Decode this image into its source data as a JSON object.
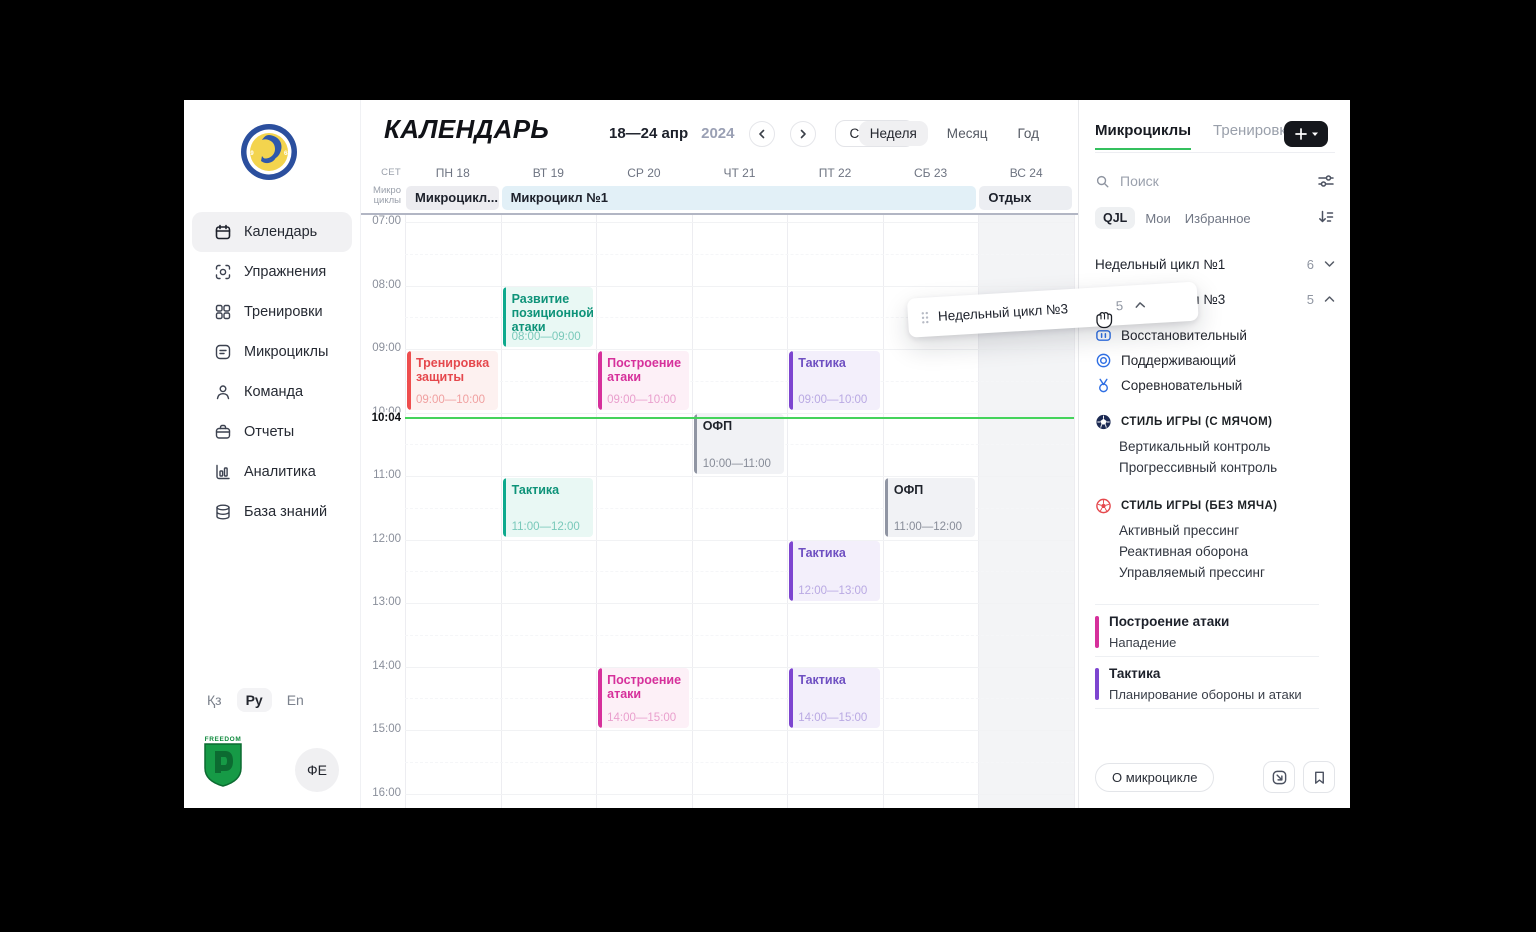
{
  "header": {
    "title": "КАЛЕНДАРЬ",
    "date_range": "18—24 апр",
    "year": "2024",
    "prev": "‹",
    "next": "›",
    "today": "Сегодня",
    "views": [
      {
        "label": "Неделя",
        "active": true
      },
      {
        "label": "Месяц",
        "active": false
      },
      {
        "label": "Год",
        "active": false
      }
    ]
  },
  "sidebar": {
    "club": "FC QYZYLJAR PETROPAVL 1968",
    "nav": [
      {
        "icon": "calendar",
        "label": "Календарь",
        "active": true
      },
      {
        "icon": "exercise",
        "label": "Упражнения",
        "active": false
      },
      {
        "icon": "grid",
        "label": "Тренировки",
        "active": false
      },
      {
        "icon": "microcycle",
        "label": "Микроциклы",
        "active": false
      },
      {
        "icon": "person",
        "label": "Команда",
        "active": false
      },
      {
        "icon": "briefcase",
        "label": "Отчеты",
        "active": false
      },
      {
        "icon": "chart",
        "label": "Аналитика",
        "active": false
      },
      {
        "icon": "database",
        "label": "База знаний",
        "active": false
      }
    ],
    "languages": [
      {
        "label": "Қз",
        "active": false
      },
      {
        "label": "Ру",
        "active": true
      },
      {
        "label": "En",
        "active": false
      }
    ],
    "partner": "FREEDOM",
    "avatar": "ФЕ"
  },
  "calendar": {
    "timezone": "CET",
    "row_label": "Микро циклы",
    "days": [
      "ПН 18",
      "ВТ 19",
      "СР 20",
      "ЧТ 21",
      "ПТ 22",
      "СБ 23",
      "ВС 24"
    ],
    "microcycles": [
      {
        "label": "Микроцикл...",
        "col": 0,
        "span": 1,
        "type": "gray"
      },
      {
        "label": "Микроцикл №1",
        "col": 1,
        "span": 5,
        "type": "blue"
      },
      {
        "label": "Отдых",
        "col": 6,
        "span": 1,
        "type": "rest"
      }
    ],
    "hours": [
      "07:00",
      "08:00",
      "09:00",
      "10:00",
      "11:00",
      "12:00",
      "13:00",
      "14:00",
      "15:00",
      "16:00"
    ],
    "now": {
      "label": "10:04",
      "hour": 10,
      "minute": 4
    },
    "events": [
      {
        "title": "Тренировка защиты",
        "time": "09:00—10:00",
        "day": 0,
        "start": 9,
        "end": 10,
        "color": "red"
      },
      {
        "title": "Развитие позиционной атаки",
        "time": "08:00—09:00",
        "day": 1,
        "start": 8,
        "end": 9,
        "color": "teal"
      },
      {
        "title": "Тактика",
        "time": "11:00—12:00",
        "day": 1,
        "start": 11,
        "end": 12,
        "color": "teal"
      },
      {
        "title": "Построение атаки",
        "time": "09:00—10:00",
        "day": 2,
        "start": 9,
        "end": 10,
        "color": "pink"
      },
      {
        "title": "Построение атаки",
        "time": "14:00—15:00",
        "day": 2,
        "start": 14,
        "end": 15,
        "color": "pink"
      },
      {
        "title": "ОФП",
        "time": "10:00—11:00",
        "day": 3,
        "start": 10,
        "end": 11,
        "color": "gray"
      },
      {
        "title": "Тактика",
        "time": "09:00—10:00",
        "day": 4,
        "start": 9,
        "end": 10,
        "color": "purple"
      },
      {
        "title": "Тактика",
        "time": "12:00—13:00",
        "day": 4,
        "start": 12,
        "end": 13,
        "color": "purple"
      },
      {
        "title": "Тактика",
        "time": "14:00—15:00",
        "day": 4,
        "start": 14,
        "end": 15,
        "color": "purple"
      },
      {
        "title": "ОФП",
        "time": "11:00—12:00",
        "day": 5,
        "start": 11,
        "end": 12,
        "color": "gray"
      }
    ],
    "palette": {
      "red": {
        "bar": "#ee4e4e",
        "txt": "#e5484d",
        "bg": "#fdf1f0",
        "tm": "#f0a0a0"
      },
      "teal": {
        "bar": "#0da98d",
        "txt": "#0e9379",
        "bg": "#e9f8f4",
        "tm": "#79c9ba"
      },
      "pink": {
        "bar": "#d6309b",
        "txt": "#d6309b",
        "bg": "#fdf0f7",
        "tm": "#e99fcd"
      },
      "purple": {
        "bar": "#7d45d0",
        "txt": "#6f50c2",
        "bg": "#f3effb",
        "tm": "#b9a9e3"
      },
      "gray": {
        "bar": "#9095a3",
        "txt": "#1f232b",
        "bg": "#f1f2f5",
        "tm": "#878c98"
      }
    },
    "now_line_color": "#44d35b"
  },
  "panel": {
    "tabs": [
      {
        "label": "Микроциклы",
        "active": true
      },
      {
        "label": "Тренировки",
        "active": false
      }
    ],
    "add_label": "+",
    "search_placeholder": "Поиск",
    "filters": [
      {
        "label": "QJL",
        "active": true
      },
      {
        "label": "Мои",
        "active": false
      },
      {
        "label": "Избранное",
        "active": false
      }
    ],
    "cycles": [
      {
        "label": "Недельный цикл №1",
        "count": "6",
        "expanded": false
      },
      {
        "label": "Недельный цикл №3",
        "count": "5",
        "expanded": true
      }
    ],
    "load_types": [
      {
        "icon": "recovery",
        "label": "Восстановительный"
      },
      {
        "icon": "maintain",
        "label": "Поддерживающий"
      },
      {
        "icon": "compete",
        "label": "Соревновательный"
      }
    ],
    "sections": [
      {
        "icon": "ball-dark",
        "title": "СТИЛЬ ИГРЫ (С МЯЧОМ)",
        "items": [
          "Вертикальный контроль",
          "Прогрессивный контроль"
        ]
      },
      {
        "icon": "ball-red",
        "title": "СТИЛЬ ИГРЫ (БЕЗ МЯЧА)",
        "items": [
          "Активный прессинг",
          "Реактивная оборона",
          "Управляемый прессинг"
        ]
      }
    ],
    "trainings": [
      {
        "title": "Построение атаки",
        "subtitle": "Нападение",
        "color": "#d6309b"
      },
      {
        "title": "Тактика",
        "subtitle": "Планирование обороны и атаки",
        "color": "#7d45d0"
      }
    ],
    "footer": {
      "about": "О микроцикле"
    }
  },
  "drag": {
    "label": "Недельный цикл №3",
    "count": "5"
  }
}
